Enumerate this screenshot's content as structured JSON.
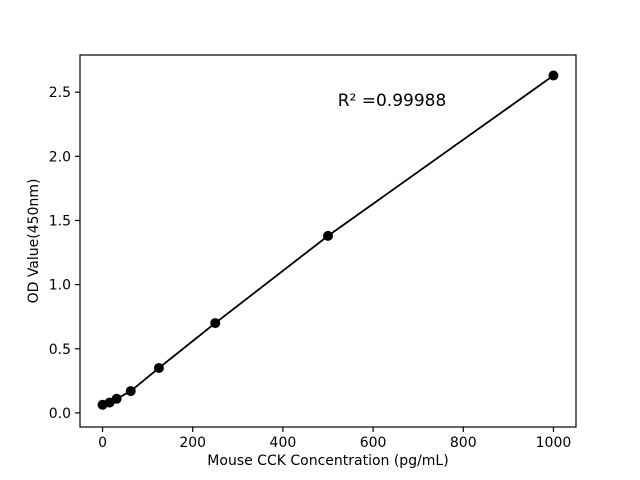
{
  "chart_data": {
    "type": "line",
    "title": "",
    "xlabel": "Mouse CCK Concentration (pg/mL)",
    "ylabel": "OD Value(450nm)",
    "annotation": "R² =0.99988",
    "x": [
      0,
      15.6,
      31.25,
      62.5,
      125,
      250,
      500,
      1000
    ],
    "y": [
      0.063,
      0.08,
      0.11,
      0.17,
      0.35,
      0.7,
      1.38,
      2.63
    ],
    "xticks": [
      0,
      200,
      400,
      600,
      800,
      1000
    ],
    "xtick_labels": [
      "0",
      "200",
      "400",
      "600",
      "800",
      "1000"
    ],
    "yticks": [
      0,
      0.5,
      1.0,
      1.5,
      2.0,
      2.5
    ],
    "ytick_labels": [
      "0.0",
      "0.5",
      "1.0",
      "1.5",
      "2.0",
      "2.5"
    ],
    "xlim": [
      -50,
      1050
    ],
    "ylim": [
      -0.11,
      2.79
    ],
    "grid": false,
    "legend": "none",
    "line_color": "#000000",
    "marker_color": "#000000",
    "axis_color": "#000000",
    "background": "#ffffff",
    "marker_radius": 5,
    "line_width": 1.8
  }
}
